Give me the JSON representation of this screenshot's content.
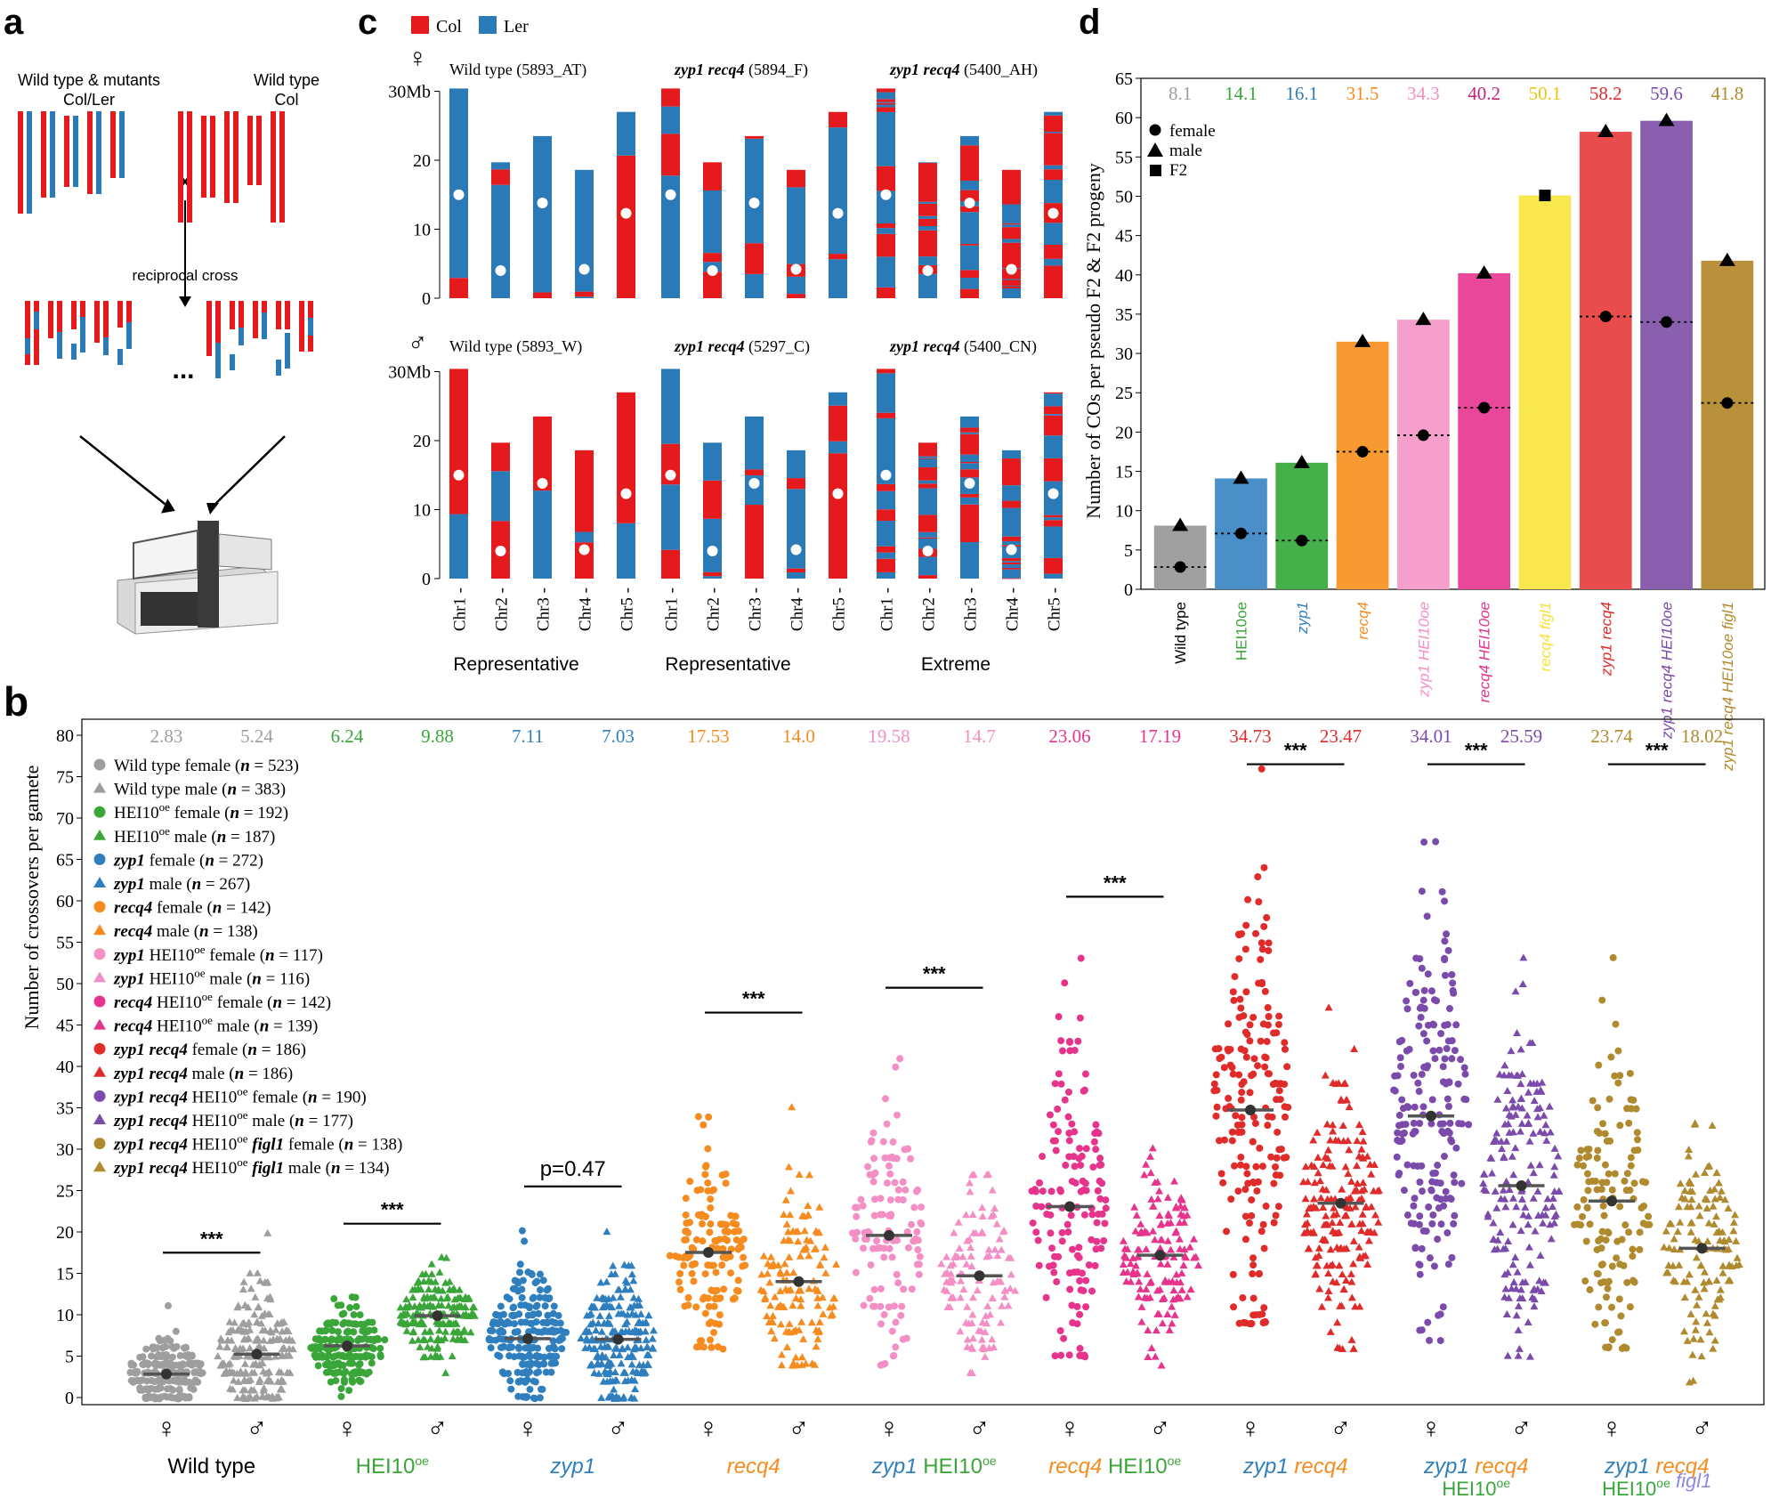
{
  "panel_labels": {
    "a": "a",
    "b": "b",
    "c": "c",
    "d": "d"
  },
  "colors": {
    "col": "#e41a1c",
    "ler": "#2a7ab8",
    "gray": "#a0a0a0",
    "wt": "#9e9e9e",
    "hei10": "#3aa63a",
    "zyp1": "#2f7fbf",
    "recq4": "#f68b1f",
    "zyp1_hei10": "#f48fc6",
    "recq4_hei10": "#e6348c",
    "zyp1_recq4": "#e02b2b",
    "zyp1_recq4_hei10": "#7b4bab",
    "zyp1_recq4_hei10_figl1": "#b08a2e",
    "recq4_figl1": "#f7e03a",
    "figl1_text": "#8a8ae6"
  },
  "panel_a": {
    "wt_mutants_label": "Wild type & mutants",
    "wt_mutants_sublabel": "Col/Ler",
    "wt_label": "Wild type",
    "wt_sublabel": "Col",
    "cross_symbol": "x",
    "reciprocal_cross": "reciprocal cross",
    "ellipsis": "..."
  },
  "panel_c": {
    "legend": [
      "Col",
      "Ler"
    ],
    "female_symbol": "♀",
    "male_symbol": "♂",
    "female_titles": [
      "Wild type (5893_AT)",
      "zyp1 recq4 (5894_F)",
      "zyp1 recq4 (5400_AH)"
    ],
    "male_titles": [
      "Wild type (5893_W)",
      "zyp1 recq4 (5297_C)",
      "zyp1 recq4 (5400_CN)"
    ],
    "y_ticks": [
      "30Mb",
      "20",
      "10",
      "0"
    ],
    "chromosomes": [
      "Chr1",
      "Chr2",
      "Chr3",
      "Chr4",
      "Chr5"
    ],
    "chromosome_lengths_mb": [
      30.4,
      19.7,
      23.5,
      18.6,
      27.0
    ],
    "centromere_mb": [
      15.0,
      4.0,
      13.8,
      4.2,
      12.3
    ],
    "group_labels": [
      "Representative",
      "Representative",
      "Extreme"
    ]
  },
  "panel_d": {
    "chart_data": {
      "type": "bar",
      "ylabel": "Number of COs per pseudo F2 & F2 progeny",
      "ylim": [
        0,
        65
      ],
      "yticks": [
        0,
        5,
        10,
        15,
        20,
        25,
        30,
        35,
        40,
        45,
        50,
        55,
        60,
        65
      ],
      "legend": [
        "female",
        "male",
        "F2"
      ],
      "categories": [
        "Wild type",
        "HEI10oe",
        "zyp1",
        "recq4",
        "zyp1 HEI10oe",
        "recq4 HEI10oe",
        "recq4 figl1",
        "zyp1 recq4",
        "zyp1 recq4 HEI10oe",
        "zyp1 recq4 HEI10oe figl1"
      ],
      "bar_values": [
        8.1,
        14.1,
        16.1,
        31.5,
        34.3,
        40.2,
        50.1,
        58.2,
        59.6,
        41.8
      ],
      "top_labels": [
        "8.1",
        "14.1",
        "16.1",
        "31.5",
        "34.3",
        "40.2",
        "50.1",
        "58.2",
        "59.6",
        "41.8"
      ],
      "female_values": [
        2.83,
        7.1,
        6.2,
        17.5,
        19.6,
        23.1,
        null,
        34.7,
        34.0,
        23.7
      ],
      "male_values": [
        8.1,
        14.1,
        16.1,
        31.5,
        34.3,
        40.2,
        null,
        58.2,
        59.6,
        41.8
      ],
      "f2_values": [
        null,
        null,
        null,
        null,
        null,
        null,
        50.1,
        null,
        null,
        null
      ]
    }
  },
  "panel_b": {
    "chart_data": {
      "type": "scatter",
      "ylabel": "Number of crossovers per gamete",
      "ylim": [
        0,
        80
      ],
      "yticks": [
        0,
        5,
        10,
        15,
        20,
        25,
        30,
        35,
        40,
        45,
        50,
        55,
        60,
        65,
        70,
        75,
        80
      ],
      "group_names": [
        "Wild type",
        "HEI10oe",
        "zyp1",
        "recq4",
        "zyp1 HEI10oe",
        "recq4 HEI10oe",
        "zyp1 recq4",
        "zyp1 recq4 HEI10oe",
        "zyp1 recq4 HEI10oe figl1"
      ],
      "means": [
        2.83,
        5.24,
        6.24,
        9.88,
        7.11,
        7.03,
        17.53,
        14.0,
        19.58,
        14.7,
        23.06,
        17.19,
        34.73,
        23.47,
        34.01,
        25.59,
        23.74,
        18.02
      ],
      "mean_labels": [
        "2.83",
        "5.24",
        "6.24",
        "9.88",
        "7.11",
        "7.03",
        "17.53",
        "14.0",
        "19.58",
        "14.7",
        "23.06",
        "17.19",
        "34.73",
        "23.47",
        "34.01",
        "25.59",
        "23.74",
        "18.02"
      ],
      "significance": [
        "***",
        "***",
        "p=0.47",
        "***",
        "***",
        "***",
        "***",
        "***",
        "***"
      ],
      "sig_y": [
        17.5,
        21,
        25.5,
        46.5,
        49.5,
        60.5,
        76.5,
        76.5,
        76.5
      ],
      "sex_symbols": [
        "♀",
        "♂"
      ],
      "legend": [
        {
          "genotype": "Wild type",
          "sex": "female",
          "n": 523
        },
        {
          "genotype": "Wild type",
          "sex": "male",
          "n": 383
        },
        {
          "genotype": "HEI10oe",
          "sex": "female",
          "n": 192
        },
        {
          "genotype": "HEI10oe",
          "sex": "male",
          "n": 187
        },
        {
          "genotype": "zyp1",
          "sex": "female",
          "n": 272
        },
        {
          "genotype": "zyp1",
          "sex": "male",
          "n": 267
        },
        {
          "genotype": "recq4",
          "sex": "female",
          "n": 142
        },
        {
          "genotype": "recq4",
          "sex": "male",
          "n": 138
        },
        {
          "genotype": "zyp1 HEI10oe",
          "sex": "female",
          "n": 117
        },
        {
          "genotype": "zyp1 HEI10oe",
          "sex": "male",
          "n": 116
        },
        {
          "genotype": "recq4 HEI10oe",
          "sex": "female",
          "n": 142
        },
        {
          "genotype": "recq4 HEI10oe",
          "sex": "male",
          "n": 139
        },
        {
          "genotype": "zyp1 recq4",
          "sex": "female",
          "n": 186
        },
        {
          "genotype": "zyp1 recq4",
          "sex": "male",
          "n": 186
        },
        {
          "genotype": "zyp1 recq4 HEI10oe",
          "sex": "female",
          "n": 190
        },
        {
          "genotype": "zyp1 recq4 HEI10oe",
          "sex": "male",
          "n": 177
        },
        {
          "genotype": "zyp1 recq4 HEI10oe figl1",
          "sex": "female",
          "n": 138
        },
        {
          "genotype": "zyp1 recq4 HEI10oe figl1",
          "sex": "male",
          "n": 134
        }
      ],
      "ranges": [
        [
          0,
          11
        ],
        [
          0,
          20
        ],
        [
          0,
          12
        ],
        [
          3,
          17
        ],
        [
          0,
          20
        ],
        [
          0,
          20
        ],
        [
          6,
          34
        ],
        [
          4,
          35
        ],
        [
          4,
          41
        ],
        [
          3,
          27
        ],
        [
          5,
          53
        ],
        [
          4,
          30
        ],
        [
          9,
          76
        ],
        [
          6,
          47
        ],
        [
          7,
          67
        ],
        [
          5,
          53
        ],
        [
          6,
          53
        ],
        [
          2,
          33
        ]
      ]
    }
  }
}
